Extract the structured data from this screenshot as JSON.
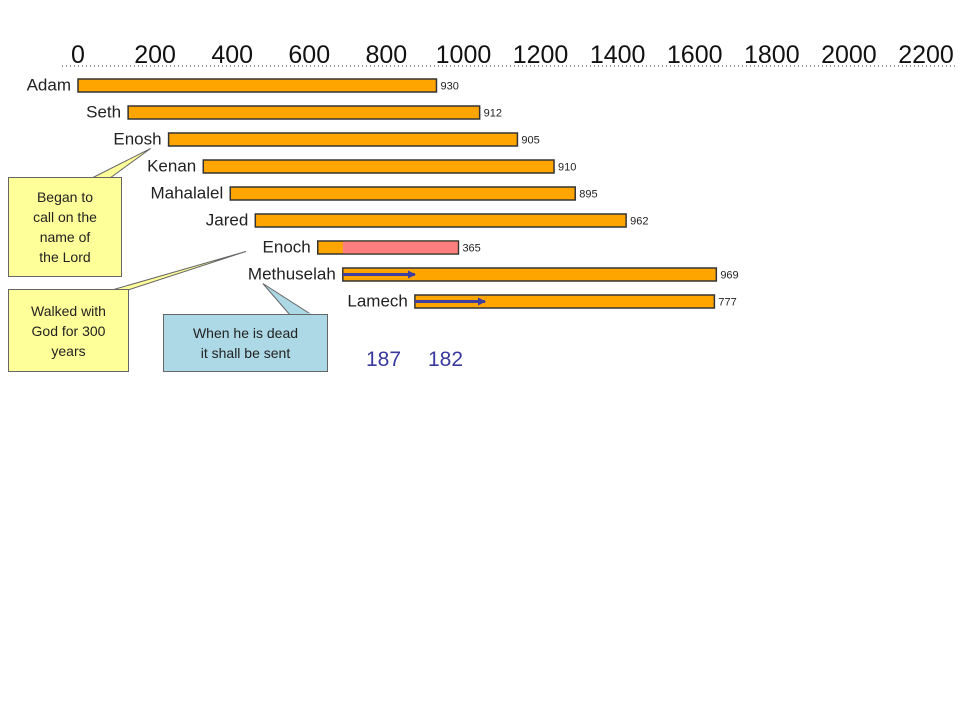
{
  "chart_data": {
    "type": "bar",
    "orientation": "horizontal",
    "x_ticks": [
      "0",
      "200",
      "400",
      "600",
      "800",
      "1000",
      "1200",
      "1400",
      "1600",
      "1800",
      "2000",
      "2200"
    ],
    "xlim": [
      0,
      2200
    ],
    "series": [
      {
        "label": "Adam",
        "start": 0,
        "value": 930
      },
      {
        "label": "Seth",
        "start": 130,
        "value": 912
      },
      {
        "label": "Enosh",
        "start": 235,
        "value": 905
      },
      {
        "label": "Kenan",
        "start": 325,
        "value": 910
      },
      {
        "label": "Mahalalel",
        "start": 395,
        "value": 895
      },
      {
        "label": "Jared",
        "start": 460,
        "value": 962
      },
      {
        "label": "Enoch",
        "start": 622,
        "value": 365,
        "highlight_from": 687,
        "highlight_color": "#FF7F7F"
      },
      {
        "label": "Methuselah",
        "start": 687,
        "value": 969
      },
      {
        "label": "Lamech",
        "start": 874,
        "value": 777
      }
    ],
    "arrows": [
      {
        "from": 687,
        "to": 874
      },
      {
        "from": 874,
        "to": 1056
      }
    ],
    "annotations": {
      "numbers": [
        "187",
        "182"
      ],
      "callouts": [
        {
          "text": "Began to call on the name of the Lord",
          "lines": [
            "Began to",
            "call on the",
            "name of",
            "the Lord"
          ]
        },
        {
          "text": "Walked with God for 300 years",
          "lines": [
            "Walked with",
            "God for 300",
            "years"
          ]
        },
        {
          "text": "When he is dead it shall be sent",
          "lines": [
            "When he is dead",
            "it shall be sent"
          ]
        }
      ]
    },
    "colors": {
      "bar": "#FFA500",
      "bar_stroke": "#333333",
      "highlight": "#FF7F7F",
      "arrow": "#3F3FA0",
      "callout_yellow": "#FFFF99",
      "callout_blue": "#ADD8E6",
      "number_text": "#3A3A9E"
    }
  }
}
